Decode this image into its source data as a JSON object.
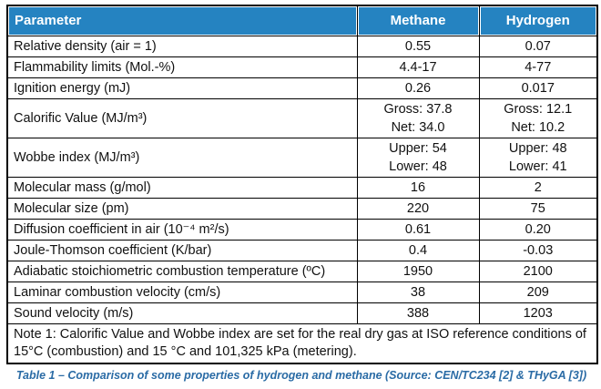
{
  "colors": {
    "header_bg": "#2583C1",
    "header_text": "#FFFFFF",
    "border": "#000000",
    "caption_text": "#2A6BA5"
  },
  "table": {
    "headers": [
      "Parameter",
      "Methane",
      "Hydrogen"
    ],
    "rows": [
      {
        "parameter": "Relative density (air = 1)",
        "methane": "0.55",
        "hydrogen": "0.07"
      },
      {
        "parameter": "Flammability limits (Mol.-%)",
        "methane": "4.4-17",
        "hydrogen": "4-77"
      },
      {
        "parameter": "Ignition energy (mJ)",
        "methane": "0.26",
        "hydrogen": "0.017"
      },
      {
        "parameter": "Calorific Value (MJ/m³)",
        "methane": "Gross: 37.8\nNet: 34.0",
        "hydrogen": "Gross: 12.1\nNet: 10.2"
      },
      {
        "parameter": "Wobbe index (MJ/m³)",
        "methane": "Upper: 54\nLower: 48",
        "hydrogen": "Upper: 48\nLower: 41"
      },
      {
        "parameter": "Molecular mass (g/mol)",
        "methane": "16",
        "hydrogen": "2"
      },
      {
        "parameter": "Molecular size (pm)",
        "methane": "220",
        "hydrogen": "75"
      },
      {
        "parameter": "Diffusion coefficient in air (10⁻⁴ m²/s)",
        "methane": "0.61",
        "hydrogen": "0.20"
      },
      {
        "parameter": "Joule-Thomson coefficient (K/bar)",
        "methane": "0.4",
        "hydrogen": "-0.03"
      },
      {
        "parameter": "Adiabatic stoichiometric combustion temperature (ºC)",
        "methane": "1950",
        "hydrogen": "2100"
      },
      {
        "parameter": "Laminar combustion velocity (cm/s)",
        "methane": "38",
        "hydrogen": "209"
      },
      {
        "parameter": "Sound velocity (m/s)",
        "methane": "388",
        "hydrogen": "1203"
      }
    ],
    "note": "Note 1: Calorific Value and Wobbe index are set for the real dry gas at ISO reference conditions of 15°C (combustion) and 15 °C and 101,325 kPa (metering)."
  },
  "caption": "Table 1 – Comparison of some properties of hydrogen and methane (Source: CEN/TC234 [2] & THyGA [3])"
}
